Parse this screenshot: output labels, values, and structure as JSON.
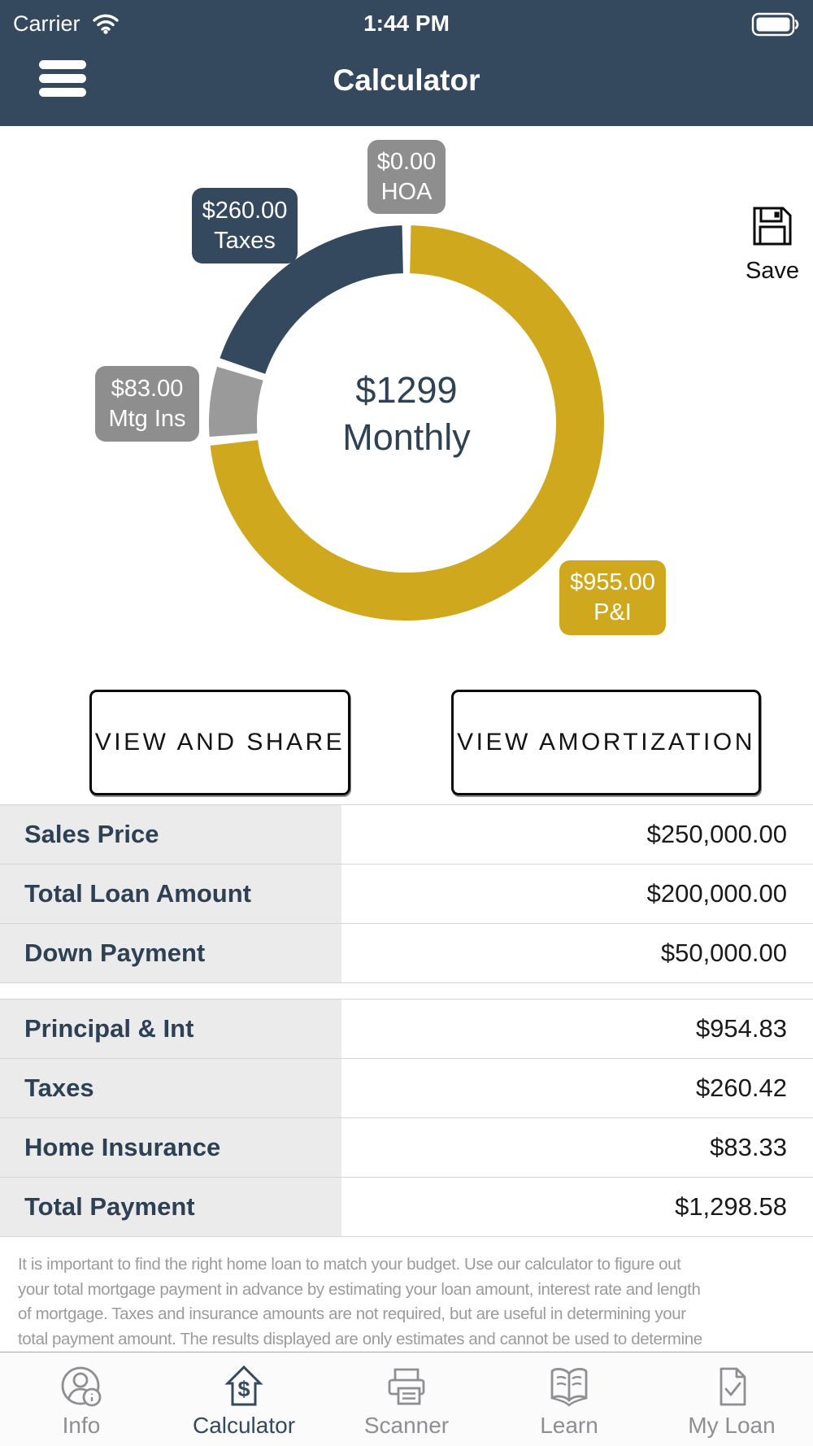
{
  "status_bar": {
    "carrier": "Carrier",
    "time": "1:44 PM"
  },
  "nav_bar": {
    "title": "Calculator"
  },
  "chart": {
    "center_value": "$1299",
    "center_label": "Monthly",
    "callouts": {
      "hoa": {
        "value": "$0.00",
        "name": "HOA"
      },
      "taxes": {
        "value": "$260.00",
        "name": "Taxes"
      },
      "mtg": {
        "value": "$83.00",
        "name": "Mtg Ins"
      },
      "pi": {
        "value": "$955.00",
        "name": "P&I"
      }
    }
  },
  "chart_data": {
    "type": "pie",
    "donut": true,
    "start_angle_deg": 0,
    "direction": "clockwise",
    "center_text": [
      "$1299",
      "Monthly"
    ],
    "slices": [
      {
        "label": "P&I",
        "value": 954.83,
        "display": "$955.00",
        "color": "#D0A81E"
      },
      {
        "label": "Mtg Ins",
        "value": 83.33,
        "display": "$83.00",
        "color": "#9A9A9A"
      },
      {
        "label": "Taxes",
        "value": 260.42,
        "display": "$260.00",
        "color": "#35495E"
      },
      {
        "label": "HOA",
        "value": 0,
        "display": "$0.00",
        "color": "#8E8E8E"
      }
    ]
  },
  "save": {
    "label": "Save"
  },
  "buttons": {
    "view_share": "VIEW AND SHARE",
    "view_amortization": "VIEW AMORTIZATION"
  },
  "tables": {
    "loan": {
      "rows": [
        {
          "label": "Sales Price",
          "value": "$250,000.00"
        },
        {
          "label": "Total Loan Amount",
          "value": "$200,000.00"
        },
        {
          "label": "Down Payment",
          "value": "$50,000.00"
        }
      ]
    },
    "payment": {
      "rows": [
        {
          "label": "Principal & Int",
          "value": "$954.83"
        },
        {
          "label": "Taxes",
          "value": "$260.42"
        },
        {
          "label": "Home Insurance",
          "value": "$83.33"
        },
        {
          "label": "Total Payment",
          "value": "$1,298.58"
        }
      ]
    }
  },
  "paragraph": {
    "text": "It is important to find the right home loan to match your budget. Use our calculator to figure out\nyour total mortgage payment in advance by estimating your loan amount, interest rate and length\nof mortgage. Taxes and insurance amounts are not required, but are useful in determining your\ntotal payment amount. The results displayed are only estimates and cannot be used to determine"
  },
  "tab_bar": {
    "items": [
      {
        "label": "Info",
        "active": false
      },
      {
        "label": "Calculator",
        "active": true
      },
      {
        "label": "Scanner",
        "active": false
      },
      {
        "label": "Learn",
        "active": false
      },
      {
        "label": "My Loan",
        "active": false
      }
    ]
  },
  "colors": {
    "header_navy": "#35495E",
    "gold": "#D0A81E",
    "slice_gray": "#9A9A9A",
    "callout_gray": "#8E8E8E",
    "table_label_navy": "#2E4154",
    "row_bg": "#EBEBEB",
    "paragraph_gray": "#9B9B9B",
    "tab_inactive": "#8E8E93",
    "tab_active": "#35495E"
  }
}
